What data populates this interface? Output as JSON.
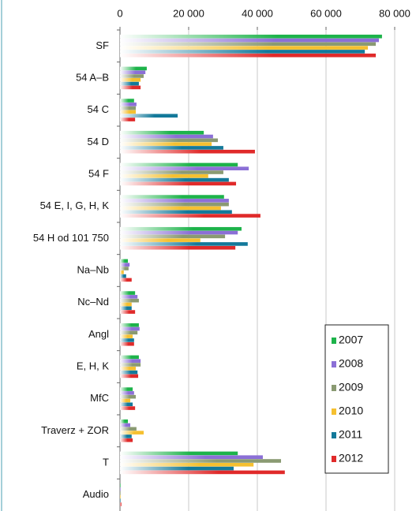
{
  "chart_data": {
    "type": "bar",
    "orientation": "horizontal",
    "categories": [
      "SF",
      "54 A–B",
      "54 C",
      "54 D",
      "54 F",
      "54 E, I, G, H, K",
      "54 H od 101 750",
      "Na–Nb",
      "Nc–Nd",
      "Angl",
      "E, H, K",
      "MfC",
      "Traverz + ZOR",
      "T",
      "Audio"
    ],
    "series": [
      {
        "name": "2007",
        "color": "#1db34a",
        "values": [
          76300,
          7800,
          4100,
          24400,
          34300,
          30300,
          35400,
          2300,
          4400,
          5500,
          5500,
          3700,
          2300,
          34300,
          200
        ]
      },
      {
        "name": "2008",
        "color": "#8b6fd6",
        "values": [
          75400,
          7400,
          4800,
          27100,
          37500,
          31700,
          34300,
          2800,
          5100,
          5700,
          6000,
          4100,
          3000,
          41600,
          200
        ]
      },
      {
        "name": "2009",
        "color": "#8a9a72",
        "values": [
          74500,
          6900,
          4600,
          28500,
          30100,
          31700,
          30600,
          2500,
          5500,
          5100,
          6000,
          4600,
          4800,
          46900,
          200
        ]
      },
      {
        "name": "2010",
        "color": "#f5c030",
        "values": [
          72200,
          6000,
          4600,
          26700,
          25700,
          29400,
          23400,
          1100,
          3400,
          3700,
          4600,
          3000,
          6900,
          38900,
          200
        ]
      },
      {
        "name": "2011",
        "color": "#13799a",
        "values": [
          71300,
          5500,
          16800,
          30100,
          31700,
          32600,
          37200,
          1800,
          3400,
          4100,
          5100,
          3700,
          3400,
          33100,
          200
        ]
      },
      {
        "name": "2012",
        "color": "#e02a2a",
        "values": [
          74500,
          6000,
          4400,
          39300,
          33800,
          40900,
          33600,
          3400,
          4400,
          4100,
          5300,
          4400,
          3700,
          48000,
          400
        ]
      }
    ],
    "xlim": [
      0,
      80000
    ],
    "xticks": [
      0,
      {
        "value": 20000,
        "label": "20 000"
      },
      {
        "value": 40000,
        "label": "40 000"
      },
      {
        "value": 60000,
        "label": "60 000"
      },
      {
        "value": 80000,
        "label": "80 000"
      }
    ],
    "grid": true,
    "legend": "lower right"
  }
}
